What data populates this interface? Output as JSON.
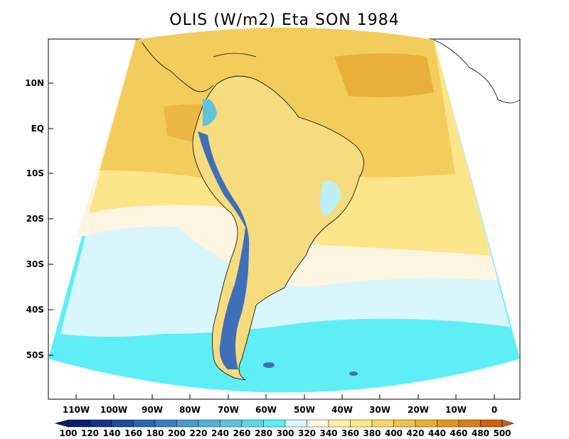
{
  "title": "OLIS (W/m2) Eta SON 1984",
  "lat_labels": [
    "10N",
    "EQ",
    "10S",
    "20S",
    "30S",
    "40S",
    "50S"
  ],
  "lon_labels": [
    "110W",
    "100W",
    "90W",
    "80W",
    "70W",
    "60W",
    "50W",
    "40W",
    "30W",
    "20W",
    "10W",
    "0"
  ],
  "colorbar": {
    "labels": [
      "100",
      "120",
      "140",
      "160",
      "180",
      "200",
      "220",
      "240",
      "260",
      "280",
      "300",
      "320",
      "340",
      "360",
      "380",
      "400",
      "420",
      "440",
      "460",
      "480",
      "500"
    ],
    "colors": [
      "#0b1d6e",
      "#163289",
      "#1f4aa0",
      "#2c64b5",
      "#3a7fc4",
      "#4a98cf",
      "#57aed6",
      "#5fc2dc",
      "#5ed6e4",
      "#5eeef6",
      "#d8f6fb",
      "#fdf5e2",
      "#fff0a8",
      "#fde58a",
      "#f8d46a",
      "#efc24a",
      "#e8ae2f",
      "#e09620",
      "#d77e18",
      "#cc6212"
    ]
  }
}
